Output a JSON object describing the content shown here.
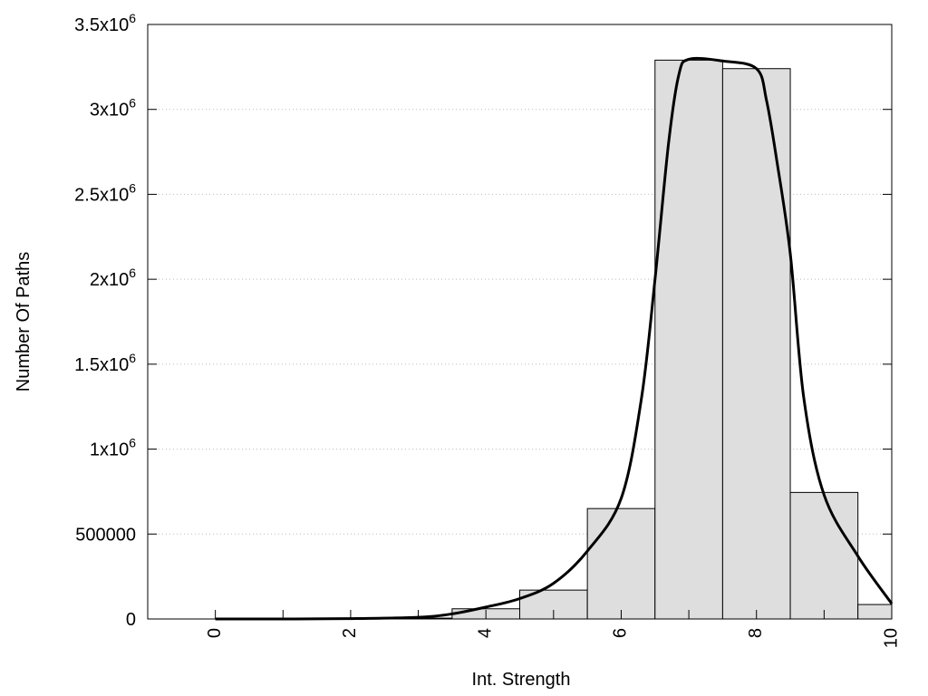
{
  "chart_data": {
    "type": "bar",
    "xlabel": "Int. Strength",
    "ylabel": "Number Of Paths",
    "xlim": [
      -1,
      10
    ],
    "ylim": [
      0,
      3500000
    ],
    "x_ticks": [
      0,
      2,
      4,
      6,
      8,
      10
    ],
    "x_tick_labels": [
      "0",
      "2",
      "4",
      "6",
      "8",
      "10"
    ],
    "y_ticks": [
      {
        "value": 0,
        "base": "0",
        "exp": ""
      },
      {
        "value": 500000,
        "base": "500000",
        "exp": ""
      },
      {
        "value": 1000000,
        "base": "1x10",
        "exp": "6"
      },
      {
        "value": 1500000,
        "base": "1.5x10",
        "exp": "6"
      },
      {
        "value": 2000000,
        "base": "2x10",
        "exp": "6"
      },
      {
        "value": 2500000,
        "base": "2.5x10",
        "exp": "6"
      },
      {
        "value": 3000000,
        "base": "3x10",
        "exp": "6"
      },
      {
        "value": 3500000,
        "base": "3.5x10",
        "exp": "6"
      }
    ],
    "grid": "horizontal dotted",
    "bar_width": 1,
    "bars": [
      {
        "x": 0,
        "value": 0
      },
      {
        "x": 1,
        "value": 0
      },
      {
        "x": 2,
        "value": 0
      },
      {
        "x": 3,
        "value": 5000
      },
      {
        "x": 4,
        "value": 60000
      },
      {
        "x": 5,
        "value": 170000
      },
      {
        "x": 6,
        "value": 650000
      },
      {
        "x": 7,
        "value": 3290000
      },
      {
        "x": 8,
        "value": 3240000
      },
      {
        "x": 9,
        "value": 745000
      },
      {
        "x": 10,
        "value": 85000
      }
    ],
    "curve": {
      "x": [
        0,
        1,
        2,
        3,
        3.5,
        4,
        4.5,
        5,
        5.5,
        6,
        6.3,
        6.5,
        6.7,
        6.85,
        7,
        7.5,
        8,
        8.15,
        8.3,
        8.5,
        8.7,
        9,
        9.5,
        10
      ],
      "y": [
        0,
        0,
        2000,
        10000,
        30000,
        70000,
        120000,
        210000,
        400000,
        710000,
        1300000,
        2000000,
        2800000,
        3200000,
        3295000,
        3285000,
        3240000,
        3050000,
        2700000,
        2150000,
        1300000,
        730000,
        370000,
        90000
      ]
    },
    "colors": {
      "bar_fill": "#dedede",
      "bar_stroke": "#000000",
      "curve": "#000000",
      "grid": "#bbbbbb"
    }
  }
}
